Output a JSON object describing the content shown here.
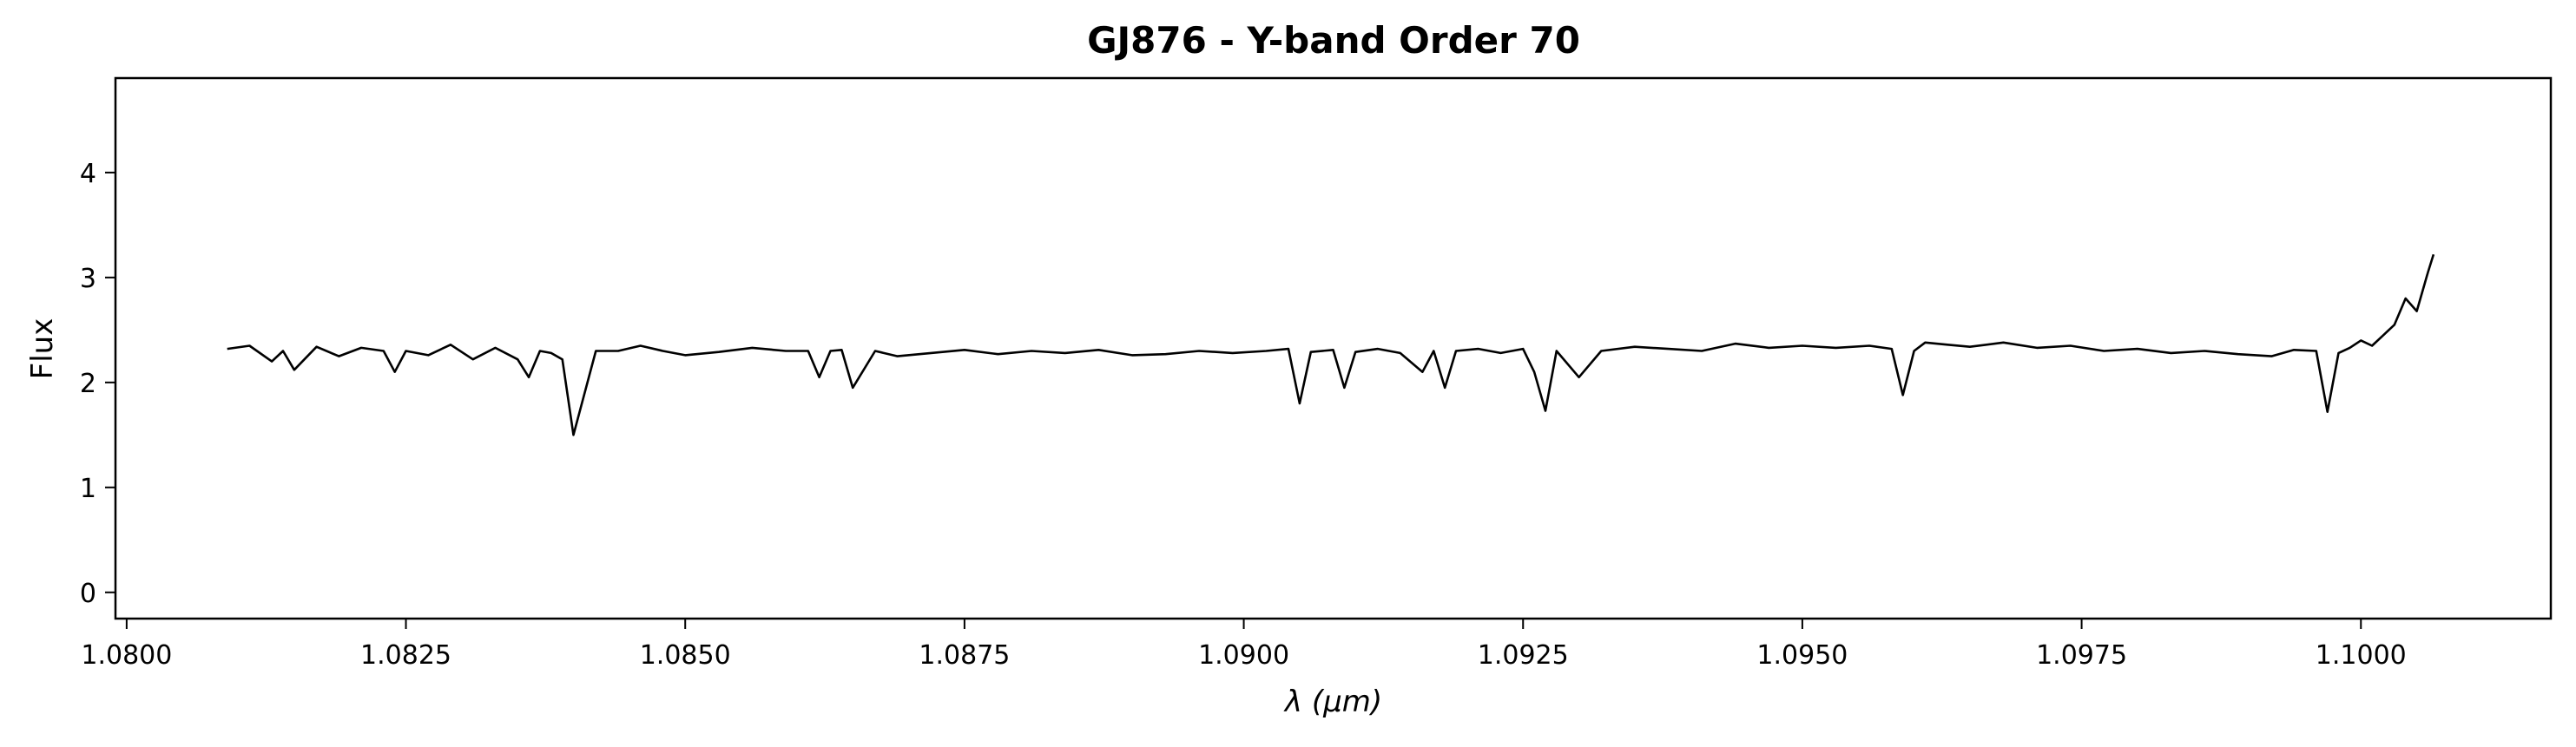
{
  "chart_data": {
    "type": "line",
    "title": "GJ876 - Y-band Order 70",
    "xlabel": "λ (μm)",
    "ylabel": "Flux",
    "xlim": [
      1.0799,
      1.1017
    ],
    "ylim": [
      -0.25,
      4.9
    ],
    "x_ticks": [
      1.08,
      1.0825,
      1.085,
      1.0875,
      1.09,
      1.0925,
      1.095,
      1.0975,
      1.1
    ],
    "x_tick_labels": [
      "1.0800",
      "1.0825",
      "1.0850",
      "1.0875",
      "1.0900",
      "1.0925",
      "1.0950",
      "1.0975",
      "1.1000"
    ],
    "y_ticks": [
      0,
      1,
      2,
      3,
      4
    ],
    "y_tick_labels": [
      "0",
      "1",
      "2",
      "3",
      "4"
    ],
    "grid": false,
    "legend": "none",
    "line_color": "#000000",
    "series": [
      {
        "x": [
          1.0809,
          1.0811,
          1.0813,
          1.0814,
          1.0815,
          1.0817,
          1.0819,
          1.0821,
          1.0823,
          1.0824,
          1.0825,
          1.0827,
          1.0829,
          1.0831,
          1.0833,
          1.0835,
          1.0836,
          1.0837,
          1.0838,
          1.0839,
          1.084,
          1.0842,
          1.0844,
          1.0846,
          1.0848,
          1.085,
          1.0853,
          1.0856,
          1.0859,
          1.0861,
          1.0862,
          1.0863,
          1.0864,
          1.0865,
          1.0867,
          1.0869,
          1.0872,
          1.0875,
          1.0878,
          1.0881,
          1.0884,
          1.0887,
          1.089,
          1.0893,
          1.0896,
          1.0899,
          1.0902,
          1.0904,
          1.0905,
          1.0906,
          1.0908,
          1.0909,
          1.091,
          1.0912,
          1.0914,
          1.0916,
          1.0917,
          1.0918,
          1.0919,
          1.0921,
          1.0923,
          1.0925,
          1.0926,
          1.0927,
          1.0928,
          1.093,
          1.0932,
          1.0935,
          1.0938,
          1.0941,
          1.0944,
          1.0947,
          1.095,
          1.0953,
          1.0956,
          1.0958,
          1.0959,
          1.096,
          1.0961,
          1.0963,
          1.0965,
          1.0968,
          1.0971,
          1.0974,
          1.0977,
          1.098,
          1.0983,
          1.0986,
          1.0989,
          1.0992,
          1.0994,
          1.0996,
          1.0997,
          1.0998,
          1.0999,
          1.1,
          1.1001,
          1.1002,
          1.1003,
          1.1004,
          1.1005,
          1.1006,
          1.10065
        ],
        "y": [
          2.32,
          2.35,
          2.2,
          2.3,
          2.12,
          2.34,
          2.25,
          2.33,
          2.3,
          2.1,
          2.3,
          2.26,
          2.36,
          2.22,
          2.33,
          2.22,
          2.05,
          2.3,
          2.28,
          2.22,
          1.5,
          2.3,
          2.3,
          2.35,
          2.3,
          2.26,
          2.29,
          2.33,
          2.3,
          2.3,
          2.05,
          2.3,
          2.31,
          1.95,
          2.3,
          2.25,
          2.28,
          2.31,
          2.27,
          2.3,
          2.28,
          2.31,
          2.26,
          2.27,
          2.3,
          2.28,
          2.3,
          2.32,
          1.8,
          2.29,
          2.31,
          1.95,
          2.29,
          2.32,
          2.28,
          2.1,
          2.3,
          1.95,
          2.3,
          2.32,
          2.28,
          2.32,
          2.1,
          1.73,
          2.3,
          2.05,
          2.3,
          2.34,
          2.32,
          2.3,
          2.37,
          2.33,
          2.35,
          2.33,
          2.35,
          2.32,
          1.88,
          2.3,
          2.38,
          2.36,
          2.34,
          2.38,
          2.33,
          2.35,
          2.3,
          2.32,
          2.28,
          2.3,
          2.27,
          2.25,
          2.31,
          2.3,
          1.72,
          2.28,
          2.33,
          2.4,
          2.35,
          2.45,
          2.55,
          2.8,
          2.68,
          3.05,
          3.22
        ]
      }
    ]
  }
}
